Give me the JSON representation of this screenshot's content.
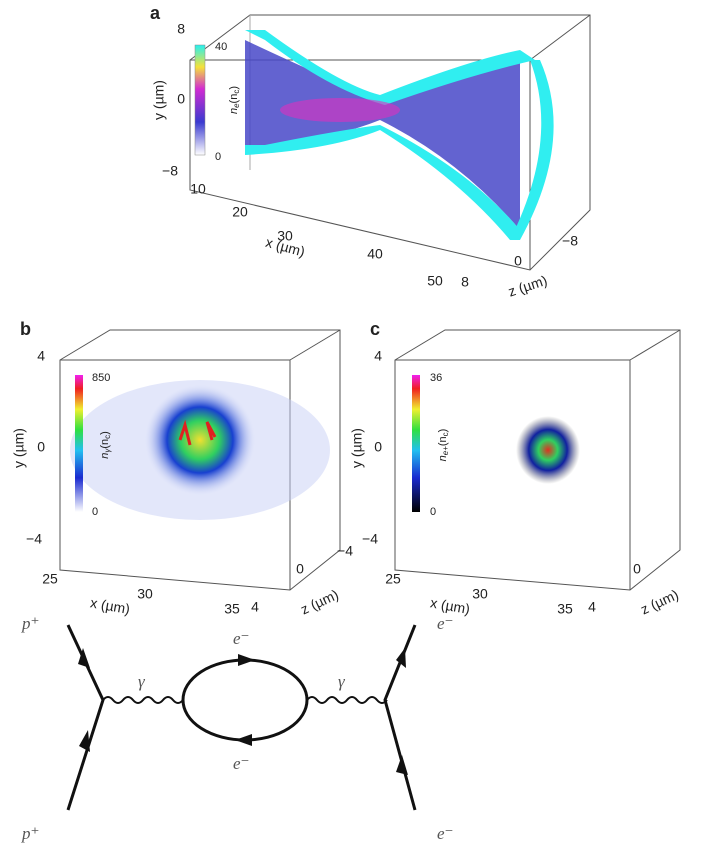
{
  "panels": [
    {
      "label": "a",
      "y_label": "y (µm)",
      "x_label": "x (µm)",
      "z_label": "z (µm)",
      "y_ticks": [
        "8",
        "0",
        "−8"
      ],
      "x_ticks": [
        "10",
        "20",
        "30",
        "40",
        "50"
      ],
      "z_ticks": [
        "8",
        "0",
        "−8"
      ],
      "colorbar": {
        "symbol": "n",
        "subscript": "e",
        "unit": "(n",
        "unit_subscript": "c",
        "close": ")",
        "max": "40",
        "min": "0"
      }
    },
    {
      "label": "b",
      "y_label": "y (µm)",
      "x_label": "x (µm)",
      "z_label": "z (µm)",
      "y_ticks": [
        "4",
        "0",
        "−4"
      ],
      "x_ticks": [
        "25",
        "30",
        "35"
      ],
      "z_ticks": [
        "4",
        "0",
        "−4"
      ],
      "colorbar": {
        "symbol": "n",
        "subscript": "γ",
        "unit": "(n",
        "unit_subscript": "c",
        "close": ")",
        "max": "850",
        "min": "0"
      }
    },
    {
      "label": "c",
      "y_label": "y (µm)",
      "x_label": "x (µm)",
      "z_label": "z (µm)",
      "y_ticks": [
        "4",
        "0",
        "−4"
      ],
      "x_ticks": [
        "25",
        "30",
        "35"
      ],
      "z_ticks": [
        "4",
        "0"
      ],
      "colorbar": {
        "symbol": "n",
        "subscript": "e+",
        "unit": "(n",
        "unit_subscript": "c",
        "close": ")",
        "max": "36",
        "min": "0"
      }
    }
  ],
  "diagram": {
    "in_top": "p⁺",
    "in_bottom": "p⁺",
    "out_top": "e⁻",
    "out_bottom": "e⁻",
    "photon_left": "γ",
    "photon_right": "γ",
    "loop_top": "e⁻",
    "loop_bottom": "e⁻"
  }
}
